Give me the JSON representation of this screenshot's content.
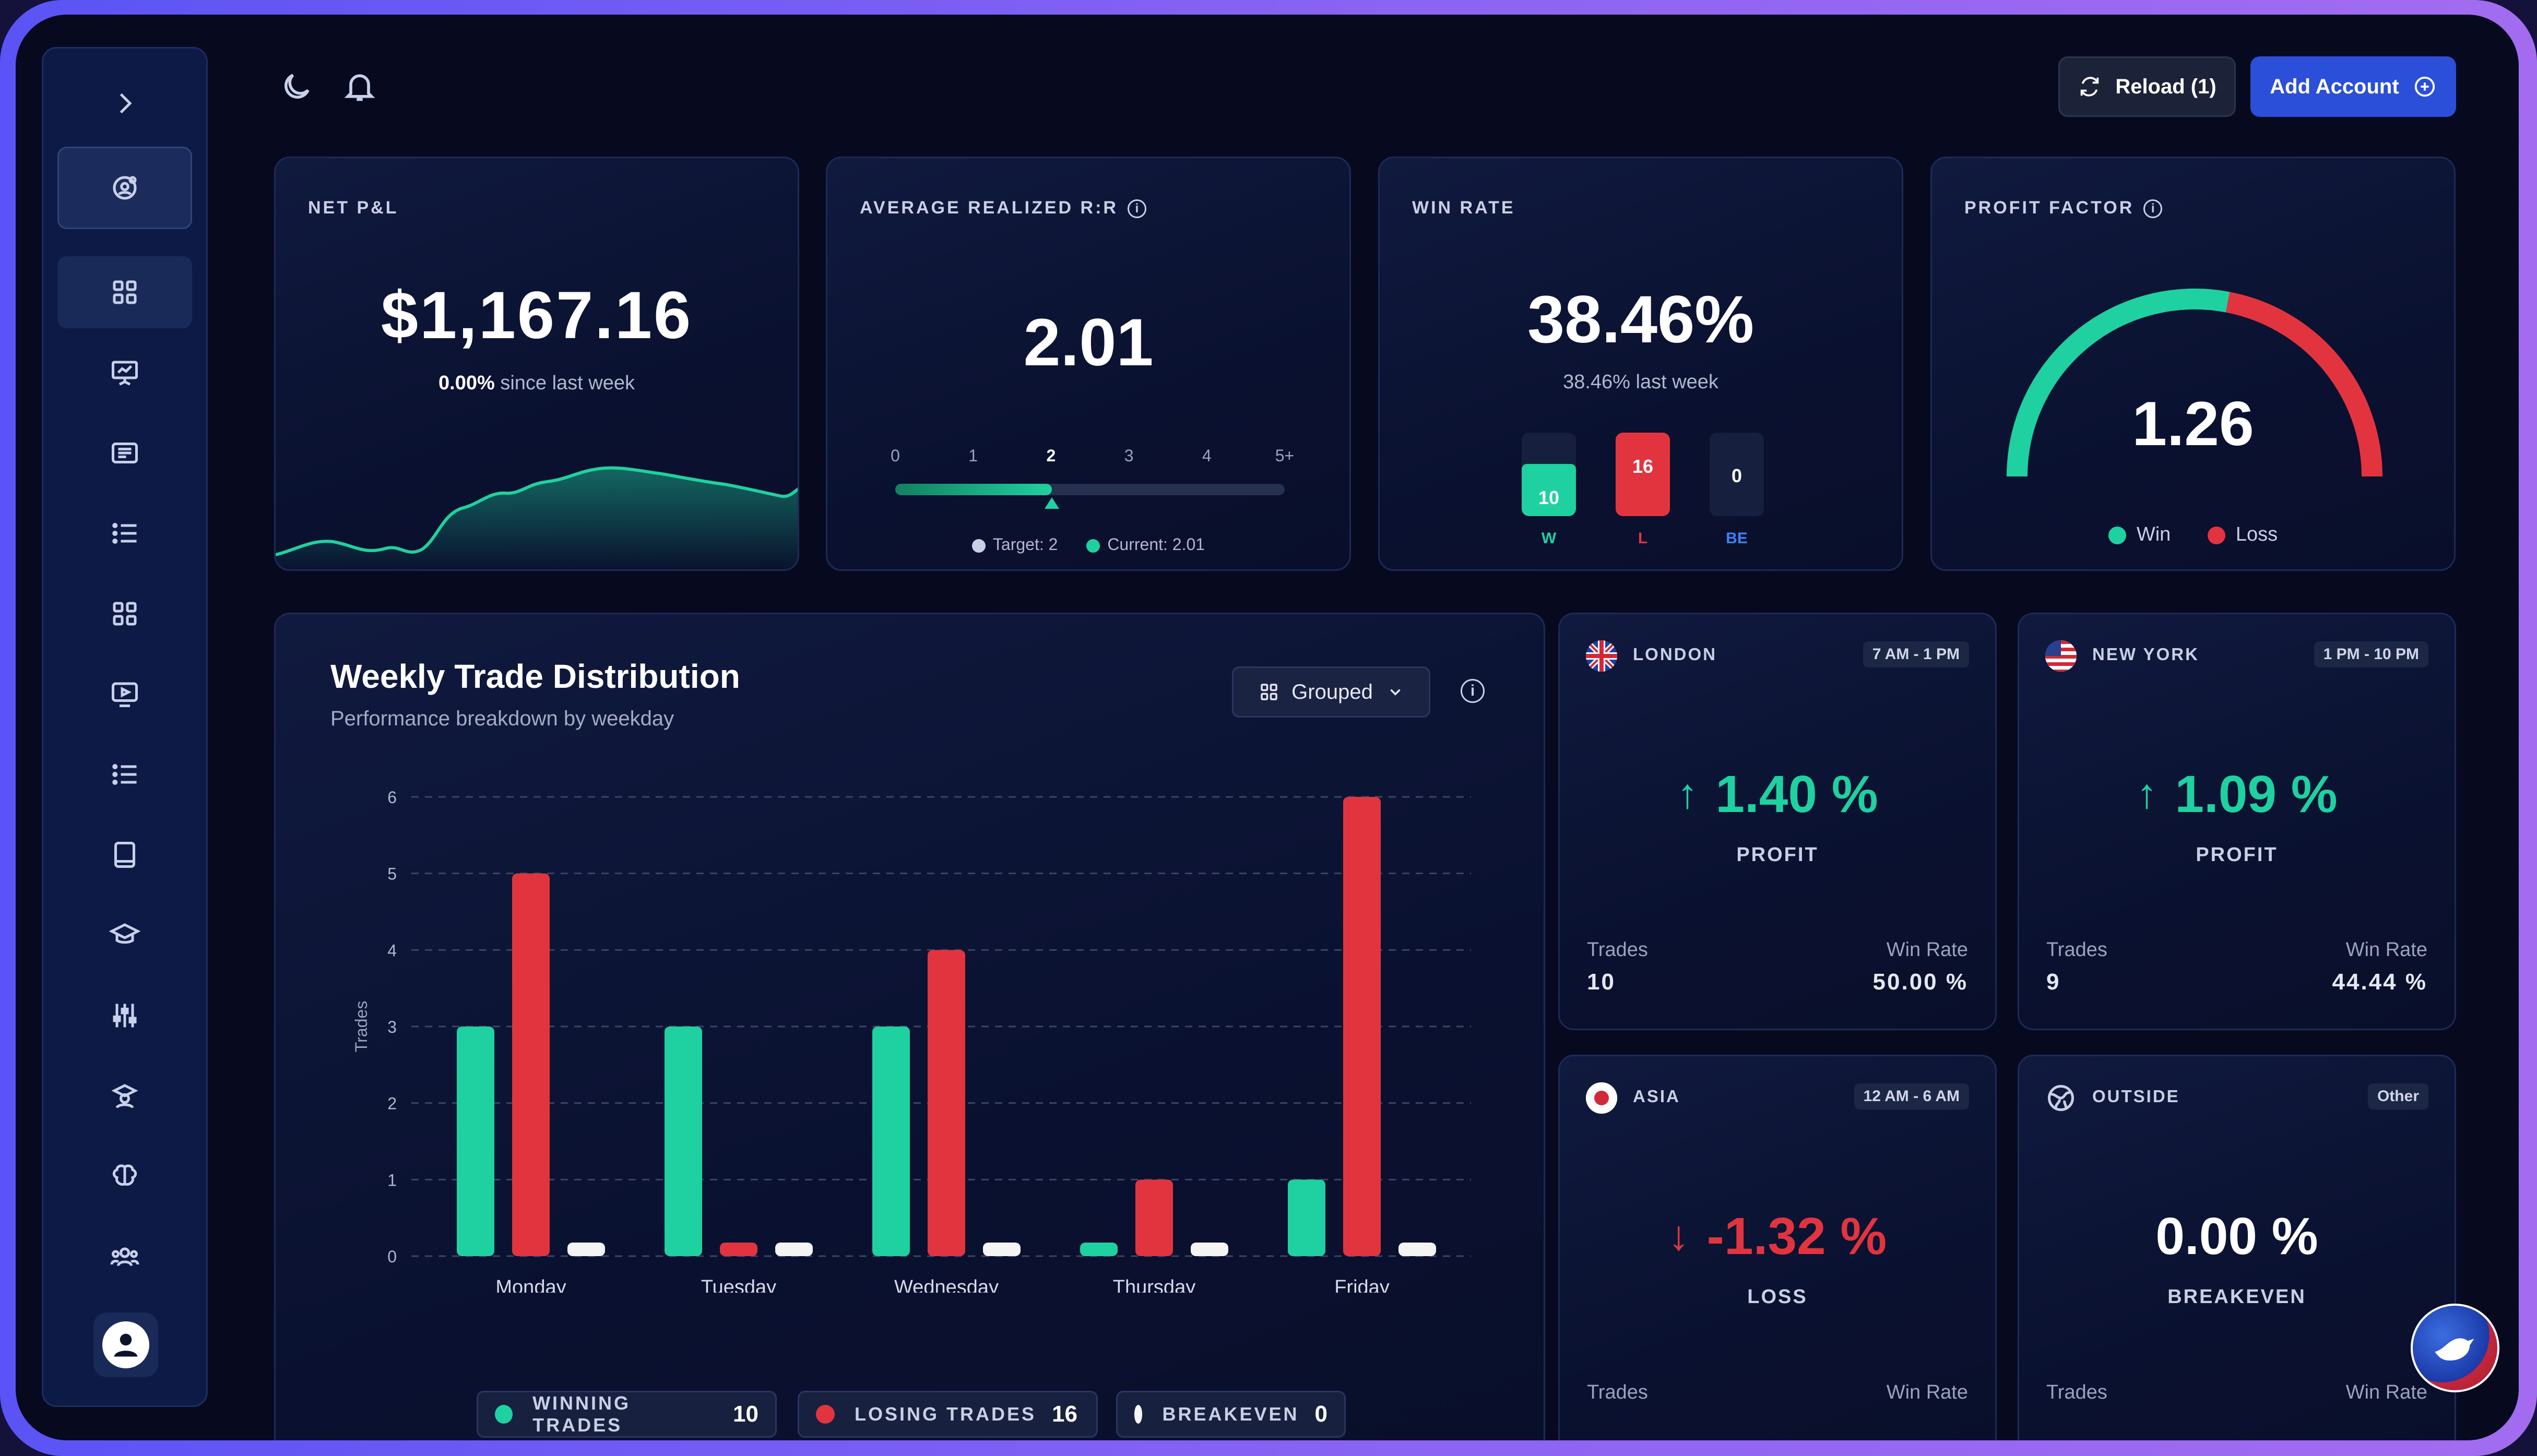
{
  "topbar": {
    "reload_label": "Reload (1)",
    "add_account_label": "Add Account"
  },
  "net_pnl": {
    "label": "NET P&L",
    "value": "$1,167.16",
    "change": "0.00%",
    "change_suffix": "since last week"
  },
  "avg_rr": {
    "label": "AVERAGE REALIZED R:R",
    "value": "2.01",
    "ticks": [
      "0",
      "1",
      "2",
      "3",
      "4",
      "5+"
    ],
    "target": 2,
    "current": 2.01,
    "target_label": "Target: 2",
    "current_label": "Current: 2.01"
  },
  "win_rate": {
    "label": "WIN RATE",
    "value": "38.46%",
    "sub": "38.46% last week",
    "boxes": [
      {
        "count": "10",
        "key": "W",
        "color": "#1fd1a0"
      },
      {
        "count": "16",
        "key": "L",
        "color": "#e2343f"
      },
      {
        "count": "0",
        "key": "BE",
        "color": "#3b82f6"
      }
    ]
  },
  "profit_factor": {
    "label": "PROFIT FACTOR",
    "value": "1.26",
    "win_label": "Win",
    "loss_label": "Loss",
    "win_fraction": 0.56
  },
  "weekly": {
    "title": "Weekly Trade Distribution",
    "subtitle": "Performance breakdown by weekday",
    "view_label": "Grouped"
  },
  "chart_data": {
    "type": "bar",
    "categories": [
      "Monday",
      "Tuesday",
      "Wednesday",
      "Thursday",
      "Friday"
    ],
    "series": [
      {
        "name": "WINNING TRADES",
        "values": [
          3,
          3,
          3,
          0,
          1
        ],
        "color": "#1fd1a0"
      },
      {
        "name": "LOSING TRADES",
        "values": [
          5,
          0,
          4,
          1,
          6
        ],
        "color": "#e2343f"
      },
      {
        "name": "BREAKEVEN",
        "values": [
          0,
          0,
          0,
          0,
          0
        ],
        "color": "#f4f4f4"
      }
    ],
    "ylabel": "Trades",
    "ylim": [
      0,
      6
    ],
    "yticks": [
      "0",
      "1",
      "2",
      "3",
      "4",
      "5",
      "6"
    ],
    "grid": true,
    "legend": [
      {
        "label": "WINNING TRADES",
        "count": "10",
        "color": "#1fd1a0"
      },
      {
        "label": "LOSING TRADES",
        "count": "16",
        "color": "#e2343f"
      },
      {
        "label": "BREAKEVEN",
        "count": "0",
        "color": "#f4f4f4"
      }
    ]
  },
  "sessions": [
    {
      "name": "LONDON",
      "hours": "7 AM - 1 PM",
      "value": "1.40 %",
      "caption": "PROFIT",
      "trades_label": "Trades",
      "trades": "10",
      "wr_label": "Win Rate",
      "wr": "50.00 %",
      "color": "#1fd1a0"
    },
    {
      "name": "NEW YORK",
      "hours": "1 PM - 10 PM",
      "value": "1.09 %",
      "caption": "PROFIT",
      "trades_label": "Trades",
      "trades": "9",
      "wr_label": "Win Rate",
      "wr": "44.44 %",
      "color": "#1fd1a0"
    },
    {
      "name": "ASIA",
      "hours": "12 AM - 6 AM",
      "value": "-1.32 %",
      "caption": "LOSS",
      "trades_label": "Trades",
      "wr_label": "Win Rate",
      "color": "#e2343f"
    },
    {
      "name": "OUTSIDE",
      "hours": "Other",
      "value": "0.00 %",
      "caption": "BREAKEVEN",
      "trades_label": "Trades",
      "wr_label": "Win Rate",
      "color": "#ffffff"
    }
  ]
}
